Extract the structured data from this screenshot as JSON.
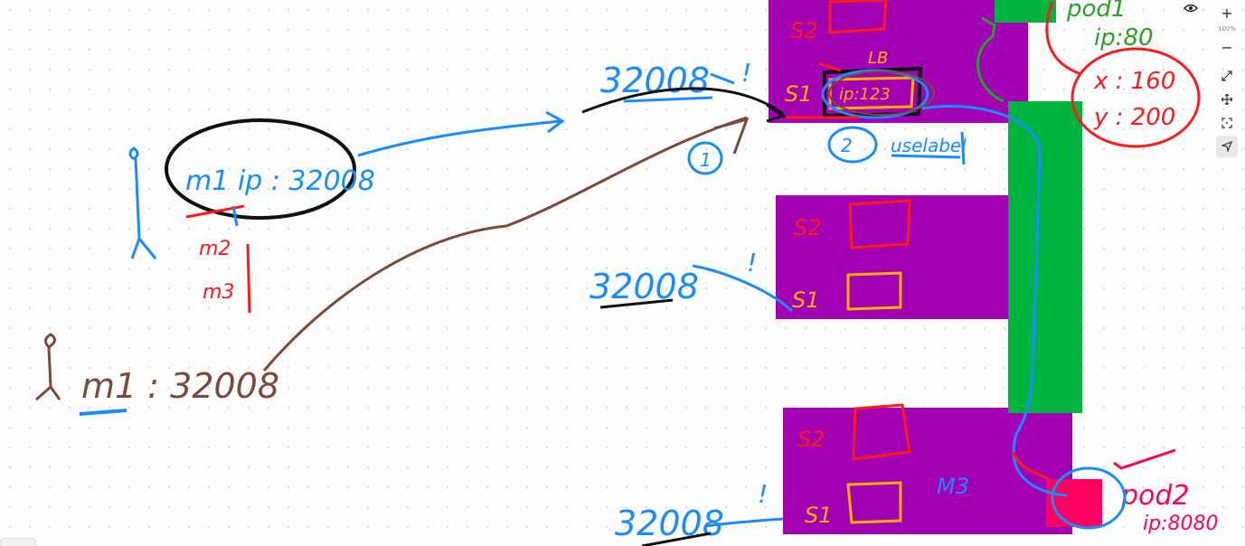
{
  "toolbar": {
    "zoom_in": "+",
    "zoom_level": "100%",
    "zoom_out": "−",
    "icons": [
      "eye-icon",
      "plus-icon",
      "minus-icon",
      "expand-icon",
      "move-icon",
      "fit-screen-icon",
      "pointer-icon"
    ]
  },
  "colors": {
    "node": "#a300b4",
    "service_bar": "#00b53f",
    "pod2": "#ff0060",
    "blue_ink": "#1a8cff",
    "red_ink": "#ff1a1a",
    "brown_ink": "#7a4a3a",
    "orange_ink": "#ffb000",
    "green_ink": "#2aa02a"
  },
  "sketch": {
    "client1": {
      "label": "m1 ip : 32008",
      "sub1": "m2",
      "sub2": "m3"
    },
    "client2": {
      "label": "m1 : 32008"
    },
    "node1": {
      "port": "32008",
      "bang": "!",
      "s2": "S2",
      "s1": "S1",
      "lb_label": "LB",
      "ip_label": "ip:123",
      "circle1": "1",
      "circle2": "2",
      "note": "uselabel"
    },
    "node2": {
      "port": "32008",
      "bang": "!",
      "s2": "S2",
      "s1": "S1"
    },
    "node3": {
      "port": "32008",
      "bang": "!",
      "s2": "S2",
      "s1": "S1",
      "name": "M3"
    },
    "pod1": {
      "title": "pod1",
      "ip": "ip:80",
      "x": "x : 160",
      "y": "y : 200"
    },
    "pod2": {
      "title": "pod2",
      "ip": "ip:8080"
    }
  }
}
